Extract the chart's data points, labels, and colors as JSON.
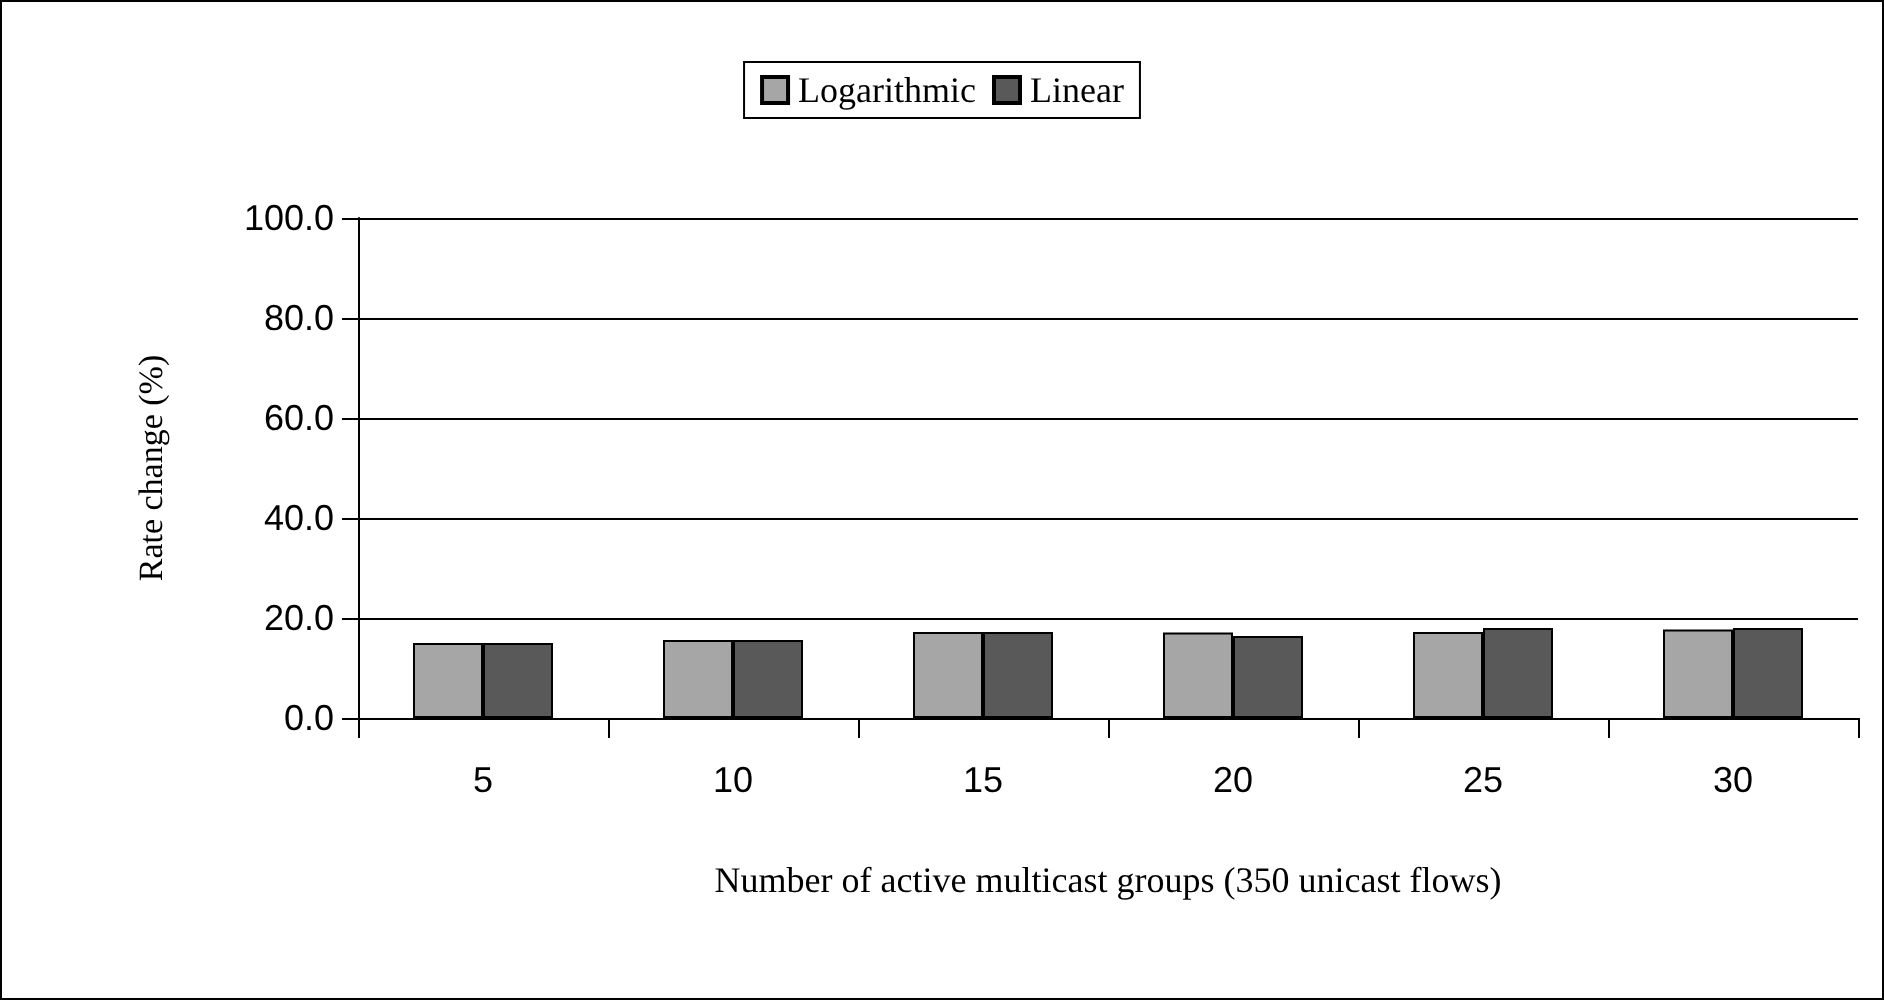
{
  "chart_data": {
    "type": "bar",
    "xlabel": "Number of active multicast groups (350 unicast flows)",
    "ylabel": "Rate change (%)",
    "categories": [
      "5",
      "10",
      "15",
      "20",
      "25",
      "30"
    ],
    "series": [
      {
        "name": "Logarithmic",
        "color": "#a6a6a6",
        "values": [
          15.0,
          15.6,
          17.2,
          17.1,
          17.2,
          17.7
        ]
      },
      {
        "name": "Linear",
        "color": "#595959",
        "values": [
          15.0,
          15.6,
          17.2,
          16.4,
          18.0,
          18.0
        ]
      }
    ],
    "ylim": [
      0,
      100
    ],
    "yticks": [
      {
        "value": 0,
        "label": "0.0"
      },
      {
        "value": 20,
        "label": "20.0"
      },
      {
        "value": 40,
        "label": "40.0"
      },
      {
        "value": 60,
        "label": "60.0"
      },
      {
        "value": 80,
        "label": "80.0"
      },
      {
        "value": 100,
        "label": "100.0"
      }
    ],
    "grid": "y",
    "legend": "top"
  }
}
